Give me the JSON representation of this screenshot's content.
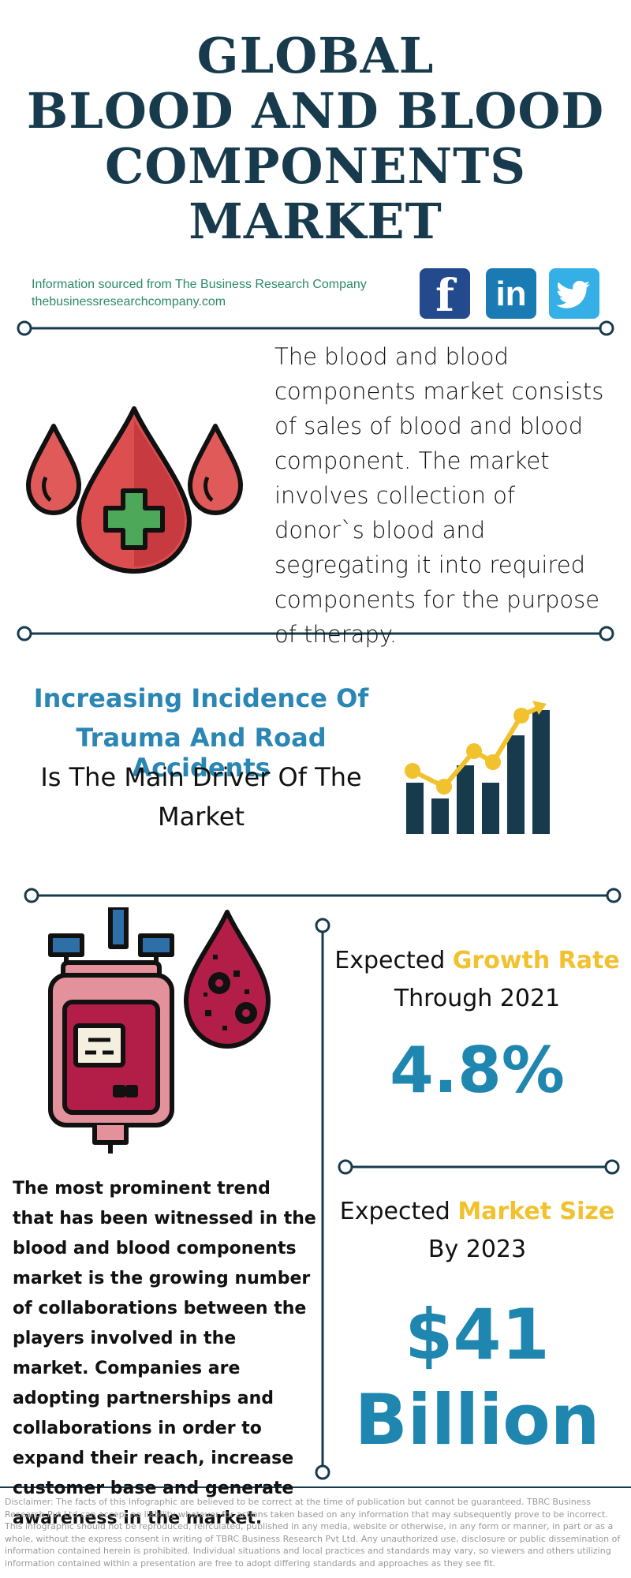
{
  "header": {
    "title_lines": [
      "GLOBAL",
      "BLOOD AND BLOOD",
      "COMPONENTS",
      "MARKET"
    ]
  },
  "source": {
    "line1": "Information sourced from The Business Research Company",
    "line2": "thebusinessresearchcompany.com"
  },
  "social": {
    "facebook": "f",
    "linkedin": "in",
    "twitter_icon": "twitter-bird-icon"
  },
  "description": "The blood and blood components market consists of sales of blood and blood component. The market involves collection of donor`s blood and segregating it into required components for the purpose of therapy.",
  "driver": {
    "highlight_line1": "Increasing Incidence Of",
    "highlight_line2": "Trauma And Road Accidents",
    "rest_line1": "Is The Main Driver Of The",
    "rest_line2": "Market"
  },
  "growth": {
    "label_prefix": "Expected ",
    "label_highlight": "Growth Rate",
    "label_line2": "Through 2021",
    "value": "4.8%"
  },
  "market_size": {
    "label_prefix": "Expected ",
    "label_highlight": "Market Size",
    "label_line2": "By 2023",
    "value_line1": "$41",
    "value_line2": "Billion"
  },
  "trend": "The most prominent trend that has been witnessed in the blood and blood components market is the growing number of collaborations between the players involved in the market. Companies are adopting partnerships and collaborations in order to expand their reach, increase customer base and generate awareness in the market.",
  "disclaimer": "Disclaimer: The facts of this infographic are believed to be correct at the time of publication but cannot be guaranteed. TBRC Business Research Pvt Ltd can accept no liability whatever for actions taken based on any information that may subsequently prove to be incorrect. This infographic should not be reproduced, reirculated, published in any media, website or otherwise, in any form or manner, in part or as a whole, without the express consent in writing of TBRC Business Research Pvt Ltd. Any unauthorized use, disclosure or public dissemination of information contained herein is prohibited. Individual situations and local practices and standards may vary, so viewers and others utilizing information contained within a presentation are free to adopt differing standards and approaches as they see fit.",
  "colors": {
    "navy": "#173b4d",
    "blue": "#1f86b0",
    "yellow": "#f2c12e",
    "green": "#2b8a6b",
    "red": "#d84c4c"
  }
}
